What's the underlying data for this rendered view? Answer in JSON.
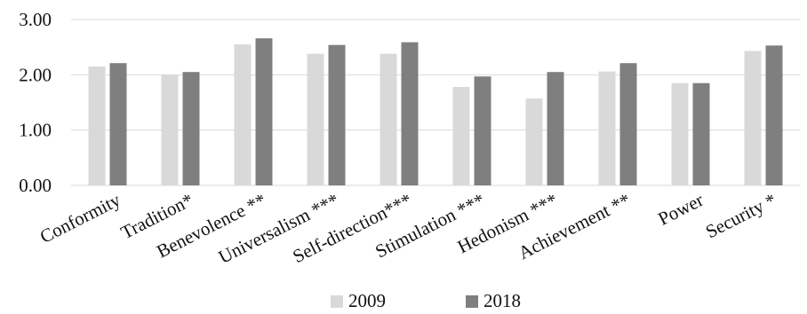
{
  "chart_data": {
    "type": "bar",
    "title": "",
    "xlabel": "",
    "ylabel": "",
    "ylim": [
      0,
      3
    ],
    "yticks": [
      "0.00",
      "1.00",
      "2.00",
      "3.00"
    ],
    "grid": true,
    "legend_position": "bottom",
    "categories": [
      "Conformity",
      "Tradition*",
      "Benevolence **",
      "Universalism ***",
      "Self-direction***",
      "Stimulation ***",
      "Hedonism ***",
      "Achievement **",
      "Power",
      "Security *"
    ],
    "series": [
      {
        "name": "2009",
        "color": "#d9d9d9",
        "values": [
          2.15,
          2.0,
          2.55,
          2.38,
          2.38,
          1.78,
          1.57,
          2.06,
          1.85,
          2.43
        ]
      },
      {
        "name": "2018",
        "color": "#7f7f7f",
        "values": [
          2.21,
          2.05,
          2.66,
          2.54,
          2.59,
          1.97,
          2.05,
          2.21,
          1.85,
          2.53
        ]
      }
    ]
  }
}
